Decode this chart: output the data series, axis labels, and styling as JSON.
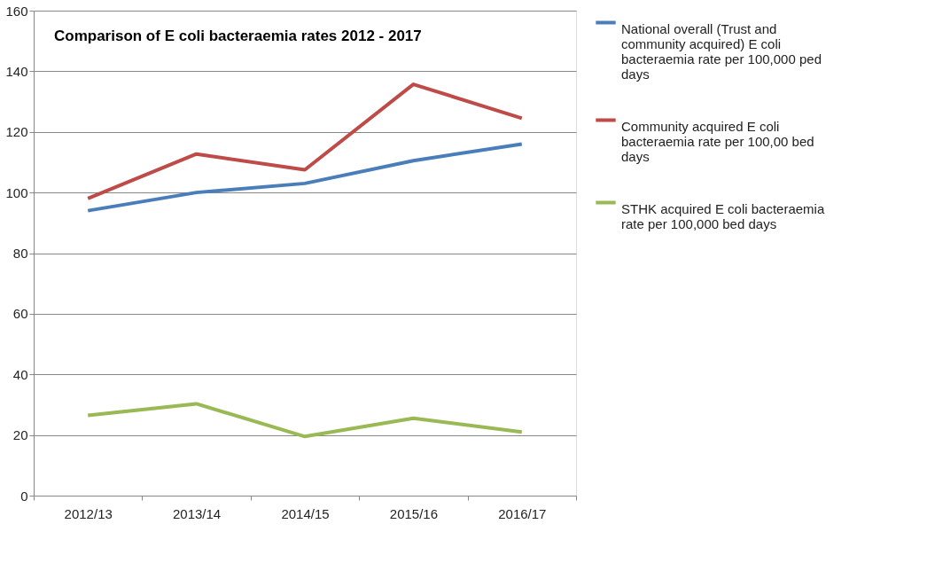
{
  "chart_data": {
    "type": "line",
    "title": "Comparison of E coli bacteraemia rates 2012 - 2017",
    "categories": [
      "2012/13",
      "2013/14",
      "2014/15",
      "2015/16",
      "2016/17"
    ],
    "series": [
      {
        "name": "National overall (Trust and community acquired) E coli bacteraemia rate per 100,000 ped days",
        "color": "#4a7ebb",
        "values": [
          94,
          100,
          103,
          110.5,
          116
        ]
      },
      {
        "name": "Community acquired E coli bacteraemia rate per 100,00 bed days",
        "color": "#be4b48",
        "values": [
          98,
          112.7,
          107.5,
          135.7,
          124.5
        ]
      },
      {
        "name": "STHK acquired E coli bacteraemia rate per 100,000 bed days",
        "color": "#98b954",
        "values": [
          26.5,
          30.3,
          19.5,
          25.5,
          21
        ]
      }
    ],
    "ylim": [
      0,
      160
    ],
    "yticks": [
      0,
      20,
      40,
      60,
      80,
      100,
      120,
      140,
      160
    ],
    "grid": "y",
    "legend": "right",
    "marker": "none",
    "line_style": "solid"
  }
}
